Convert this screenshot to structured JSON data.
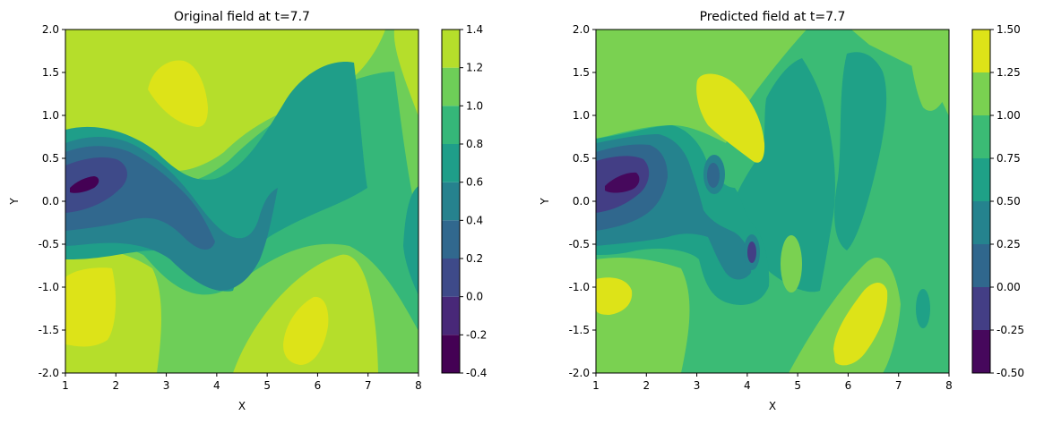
{
  "chart_data": [
    {
      "type": "contour",
      "title": "Original field at t=7.7",
      "xlabel": "X",
      "ylabel": "Y",
      "xlim": [
        1,
        8
      ],
      "ylim": [
        -2,
        2
      ],
      "xticks": [
        "1",
        "2",
        "3",
        "4",
        "5",
        "6",
        "7",
        "8"
      ],
      "yticks": [
        "-2.0",
        "-1.5",
        "-1.0",
        "-0.5",
        "0.0",
        "0.5",
        "1.0",
        "1.5",
        "2.0"
      ],
      "colorbar": {
        "levels": [
          -0.4,
          -0.2,
          0.0,
          0.2,
          0.4,
          0.6,
          0.8,
          1.0,
          1.2,
          1.4
        ],
        "ticks": [
          "-0.4",
          "-0.2",
          "0.0",
          "0.2",
          "0.4",
          "0.6",
          "0.8",
          "1.0",
          "1.2",
          "1.4"
        ]
      },
      "colors": [
        "#440154",
        "#482878",
        "#3e4a89",
        "#31688e",
        "#26828e",
        "#1f9e89",
        "#35b779",
        "#6ece58",
        "#b5de2b",
        "#dde318"
      ]
    },
    {
      "type": "contour",
      "title": "Predicted field at t=7.7",
      "xlabel": "X",
      "ylabel": "Y",
      "xlim": [
        1,
        8
      ],
      "ylim": [
        -2,
        2
      ],
      "xticks": [
        "1",
        "2",
        "3",
        "4",
        "5",
        "6",
        "7",
        "8"
      ],
      "yticks": [
        "-2.0",
        "-1.5",
        "-1.0",
        "-0.5",
        "0.0",
        "0.5",
        "1.0",
        "1.5",
        "2.0"
      ],
      "colorbar": {
        "levels": [
          -0.5,
          -0.25,
          0.0,
          0.25,
          0.5,
          0.75,
          1.0,
          1.25,
          1.5
        ],
        "ticks": [
          "-0.50",
          "-0.25",
          "0.00",
          "0.25",
          "0.50",
          "0.75",
          "1.00",
          "1.25",
          "1.50"
        ]
      },
      "colors": [
        "#46085c",
        "#433e85",
        "#30678d",
        "#25838e",
        "#1fa187",
        "#3bbb75",
        "#7ad151",
        "#dde318"
      ]
    }
  ]
}
